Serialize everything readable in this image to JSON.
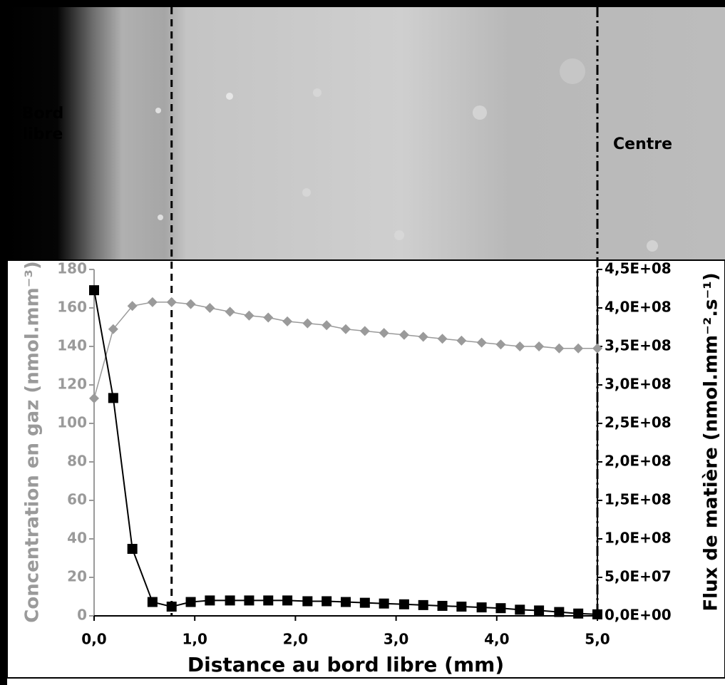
{
  "chart_data": {
    "type": "line",
    "x_label": "Distance au bord libre (mm)",
    "y_label": "Concentration en gaz (nmol.mm⁻³)",
    "y2_label": "Flux de matière (nmol.mm⁻².s⁻¹)",
    "annotations": [
      "Bord libre",
      "Centre"
    ],
    "reference_lines": [
      {
        "x": 0.77,
        "style": "dashed"
      },
      {
        "x": 5,
        "style": "dashdot"
      }
    ],
    "x": [
      0,
      0.19,
      0.38,
      0.58,
      0.77,
      0.96,
      1.15,
      1.35,
      1.54,
      1.73,
      1.92,
      2.12,
      2.31,
      2.5,
      2.69,
      2.88,
      3.08,
      3.27,
      3.46,
      3.65,
      3.85,
      4.04,
      4.23,
      4.42,
      4.62,
      4.81,
      5
    ],
    "series": [
      {
        "name": "Concentration en gaz",
        "color": "#9a9a9a",
        "marker": "diamond",
        "axis": "y",
        "values": [
          113,
          149,
          161,
          163,
          163,
          162,
          160,
          158,
          156,
          155,
          153,
          152,
          151,
          149,
          148,
          147,
          146,
          145,
          144,
          143,
          142,
          141,
          140,
          140,
          139,
          139,
          139
        ]
      },
      {
        "name": "Flux de matière",
        "color": "#000000",
        "marker": "square",
        "axis": "y2",
        "values": [
          423000000,
          283000000,
          87000000,
          18000000,
          12000000,
          18000000,
          20000000,
          20000000,
          20000000,
          20000000,
          20000000,
          19000000,
          19000000,
          18000000,
          17000000,
          16000000,
          15000000,
          14000000,
          13000000,
          12000000,
          11000000,
          10000000,
          8000000,
          7000000,
          5000000,
          3000000,
          2000000
        ]
      }
    ],
    "xlim": [
      0,
      5
    ],
    "xticks": [
      {
        "value": 0,
        "label": "0,0"
      },
      {
        "value": 1,
        "label": "1,0"
      },
      {
        "value": 2,
        "label": "2,0"
      },
      {
        "value": 3,
        "label": "3,0"
      },
      {
        "value": 4,
        "label": "4,0"
      },
      {
        "value": 5,
        "label": "5,0"
      }
    ],
    "ylim": [
      0,
      180
    ],
    "yticks": [
      0,
      20,
      40,
      60,
      80,
      100,
      120,
      140,
      160,
      180
    ],
    "y2lim": [
      0,
      450000000
    ],
    "y2ticks": [
      {
        "value": 0,
        "label": "0,0E+00"
      },
      {
        "value": 50000000,
        "label": "5,0E+07"
      },
      {
        "value": 100000000,
        "label": "1,0E+08"
      },
      {
        "value": 150000000,
        "label": "1,5E+08"
      },
      {
        "value": 200000000,
        "label": "2,0E+08"
      },
      {
        "value": 250000000,
        "label": "2,5E+08"
      },
      {
        "value": 300000000,
        "label": "3,0E+08"
      },
      {
        "value": 350000000,
        "label": "3,5E+08"
      },
      {
        "value": 400000000,
        "label": "4,0E+08"
      },
      {
        "value": 450000000,
        "label": "4,5E+08"
      }
    ],
    "left_axis_color": "#9a9a9a",
    "right_axis_color": "#000000"
  }
}
